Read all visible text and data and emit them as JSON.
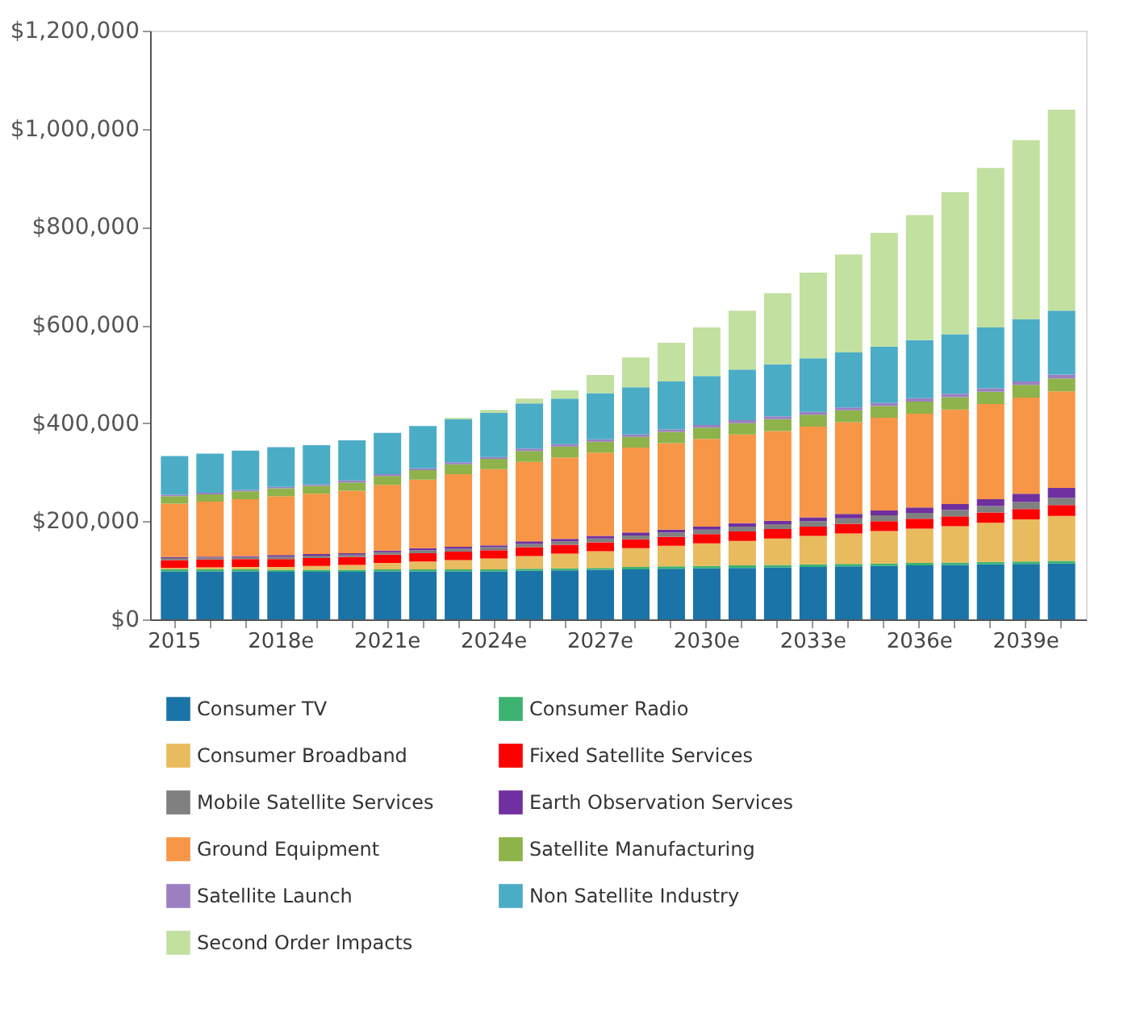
{
  "chart_data": {
    "type": "bar",
    "stacked": true,
    "legend": "bottom",
    "grid": false,
    "categories": [
      "2015",
      null,
      null,
      "2018e",
      null,
      null,
      "2021e",
      null,
      null,
      "2024e",
      null,
      null,
      "2027e",
      null,
      null,
      "2030e",
      null,
      null,
      "2033e",
      null,
      null,
      "2036e",
      null,
      null,
      "2039e",
      null
    ],
    "ylim": [
      0,
      1200000
    ],
    "yticks": [
      {
        "value": 0,
        "label": "$0"
      },
      {
        "value": 200000,
        "label": "$200,000"
      },
      {
        "value": 400000,
        "label": "$400,000"
      },
      {
        "value": 600000,
        "label": "$600,000"
      },
      {
        "value": 800000,
        "label": "$800,000"
      },
      {
        "value": 1000000,
        "label": "$1,000,000"
      },
      {
        "value": 1200000,
        "label": "$1,200,000"
      }
    ],
    "series": [
      {
        "name": "Consumer TV",
        "color": "#1a74a8",
        "values": [
          98000,
          98000,
          98000,
          97000,
          97000,
          97000,
          98000,
          98000,
          98000,
          98000,
          99000,
          100000,
          101000,
          102000,
          103000,
          104000,
          105000,
          106000,
          107000,
          108000,
          109000,
          110000,
          111000,
          112000,
          113000,
          114000
        ]
      },
      {
        "name": "Consumer Radio",
        "color": "#3cb371",
        "values": [
          4000,
          4000,
          4000,
          4000,
          4000,
          4000,
          4000,
          4000,
          4000,
          4000,
          4000,
          4000,
          4000,
          5000,
          5000,
          5000,
          5000,
          5000,
          5000,
          5000,
          5000,
          5000,
          5000,
          5000,
          5000,
          5000
        ]
      },
      {
        "name": "Consumer Broadband",
        "color": "#e8bb5f",
        "values": [
          3000,
          4000,
          5000,
          6000,
          8000,
          10000,
          13000,
          16000,
          19000,
          22000,
          26000,
          30000,
          34000,
          38000,
          42000,
          46000,
          50000,
          54000,
          58000,
          62000,
          66000,
          70000,
          74000,
          80000,
          86000,
          92000
        ]
      },
      {
        "name": "Fixed Satellite Services",
        "color": "#ff0000",
        "values": [
          16000,
          16000,
          16000,
          16000,
          16000,
          16000,
          17000,
          17000,
          17000,
          17000,
          18000,
          18000,
          18000,
          18000,
          18000,
          19000,
          19000,
          19000,
          19000,
          20000,
          20000,
          20000,
          20000,
          21000,
          21000,
          22000
        ]
      },
      {
        "name": "Mobile Satellite Services",
        "color": "#808080",
        "values": [
          4000,
          4000,
          4000,
          5000,
          5000,
          5000,
          5000,
          6000,
          6000,
          6000,
          7000,
          7000,
          8000,
          8000,
          9000,
          9000,
          10000,
          10000,
          11000,
          11000,
          12000,
          12000,
          13000,
          13000,
          14000,
          15000
        ]
      },
      {
        "name": "Earth Observation Services",
        "color": "#7030a0",
        "values": [
          2000,
          2000,
          2000,
          3000,
          3000,
          3000,
          3000,
          4000,
          4000,
          4000,
          5000,
          5000,
          5000,
          6000,
          6000,
          6000,
          7000,
          7000,
          8000,
          9000,
          10000,
          11000,
          12000,
          14000,
          17000,
          20000
        ]
      },
      {
        "name": "Ground Equipment",
        "color": "#f79646",
        "values": [
          109000,
          112000,
          116000,
          120000,
          123000,
          127000,
          134000,
          140000,
          148000,
          155000,
          162000,
          166000,
          170000,
          173000,
          176000,
          179000,
          181000,
          183000,
          185000,
          187000,
          189000,
          191000,
          193000,
          194000,
          196000,
          197000
        ]
      },
      {
        "name": "Satellite Manufacturing",
        "color": "#8db34a",
        "values": [
          15000,
          15000,
          16000,
          16000,
          16000,
          17000,
          18000,
          19000,
          20000,
          21000,
          22000,
          22000,
          22000,
          22000,
          23000,
          23000,
          23000,
          24000,
          24000,
          24000,
          24000,
          25000,
          25000,
          25000,
          26000,
          26000
        ]
      },
      {
        "name": "Satellite Launch",
        "color": "#9b7fc0",
        "values": [
          3000,
          3000,
          3000,
          3000,
          3000,
          4000,
          4000,
          4000,
          4000,
          4000,
          5000,
          5000,
          5000,
          5000,
          5000,
          5000,
          6000,
          6000,
          6000,
          6000,
          6000,
          7000,
          7000,
          7000,
          7000,
          8000
        ]
      },
      {
        "name": "Non Satellite Industry",
        "color": "#4bacc6",
        "values": [
          79000,
          80000,
          80000,
          81000,
          80000,
          82000,
          84000,
          86000,
          88000,
          90000,
          92000,
          93000,
          94000,
          96000,
          98000,
          100000,
          103000,
          106000,
          109000,
          112000,
          115000,
          118000,
          121000,
          124000,
          127000,
          130000
        ]
      },
      {
        "name": "Second Order Impacts",
        "color": "#c2e0a0",
        "values": [
          0,
          0,
          0,
          0,
          0,
          0,
          0,
          0,
          3000,
          6000,
          10000,
          17000,
          37000,
          61000,
          79000,
          99000,
          120000,
          145000,
          175000,
          200000,
          232000,
          255000,
          290000,
          325000,
          365000,
          410000
        ]
      }
    ]
  }
}
